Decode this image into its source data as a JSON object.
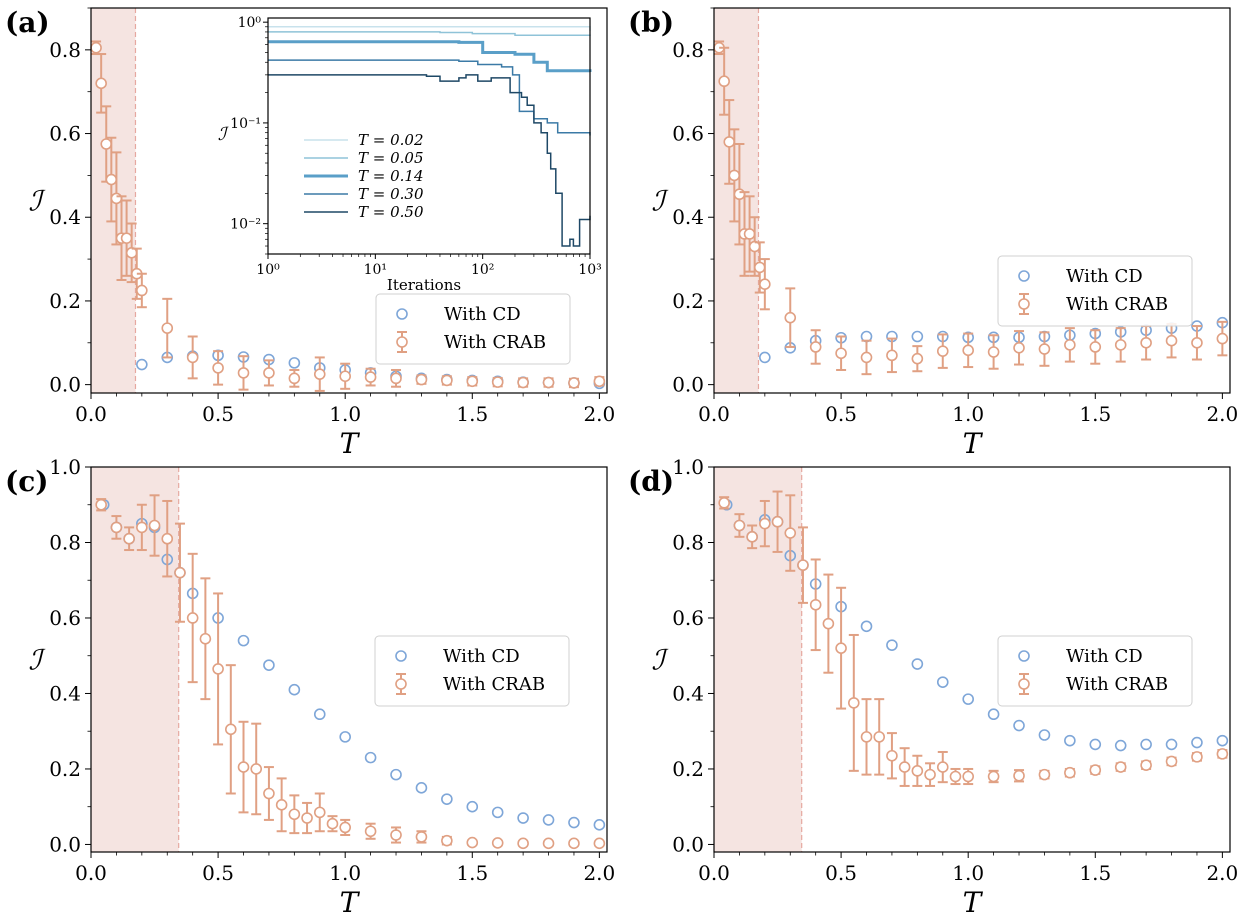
{
  "colors": {
    "cd": "#7ea6d8",
    "crab": "#e0a083",
    "shade": "#f5e4e1",
    "shade_line": "#e6a8a0"
  },
  "legend": {
    "cd": "With CD",
    "crab": "With CRAB"
  },
  "chart_data": [
    {
      "type": "scatter",
      "panel_label": "(a)",
      "xlabel": "T",
      "ylabel": "ℐ",
      "xlim": [
        0,
        2.03
      ],
      "ylim": [
        -0.02,
        0.9
      ],
      "xticks": [
        "0.0",
        "0.5",
        "1.0",
        "1.5",
        "2.0"
      ],
      "yticks": [
        "0.0",
        "0.2",
        "0.4",
        "0.6",
        "0.8"
      ],
      "shade_x": 0.175,
      "legend_position": "lower-right",
      "series": [
        {
          "name": "With CD",
          "x": [
            0.2,
            0.3,
            0.4,
            0.5,
            0.6,
            0.7,
            0.8,
            0.9,
            1.0,
            1.1,
            1.2,
            1.3,
            1.4,
            1.5,
            1.6,
            1.7,
            1.8,
            1.9,
            2.0
          ],
          "y": [
            0.048,
            0.065,
            0.068,
            0.07,
            0.066,
            0.06,
            0.052,
            0.04,
            0.035,
            0.028,
            0.02,
            0.015,
            0.012,
            0.01,
            0.008,
            0.006,
            0.005,
            0.004,
            0.003
          ]
        },
        {
          "name": "With CRAB",
          "x": [
            0.02,
            0.04,
            0.06,
            0.08,
            0.1,
            0.12,
            0.14,
            0.16,
            0.18,
            0.2,
            0.3,
            0.4,
            0.5,
            0.6,
            0.7,
            0.8,
            0.9,
            1.0,
            1.1,
            1.2,
            1.3,
            1.4,
            1.5,
            1.6,
            1.7,
            1.8,
            1.9,
            2.0
          ],
          "y": [
            0.805,
            0.72,
            0.575,
            0.49,
            0.445,
            0.35,
            0.35,
            0.315,
            0.265,
            0.225,
            0.135,
            0.065,
            0.04,
            0.028,
            0.028,
            0.015,
            0.025,
            0.02,
            0.018,
            0.015,
            0.012,
            0.01,
            0.008,
            0.006,
            0.005,
            0.005,
            0.004,
            0.008
          ],
          "err": [
            0.015,
            0.07,
            0.09,
            0.1,
            0.11,
            0.1,
            0.09,
            0.07,
            0.06,
            0.04,
            0.07,
            0.05,
            0.04,
            0.04,
            0.03,
            0.02,
            0.04,
            0.03,
            0.02,
            0.02,
            0.01,
            0.01,
            0.01,
            0.01,
            0.01,
            0.01,
            0.01,
            0.01
          ]
        }
      ],
      "inset": {
        "xlabel": "Iterations",
        "ylabel": "ℐ",
        "xticks": [
          "10⁰",
          "10¹",
          "10²",
          "10³"
        ],
        "yticks": [
          "10⁰",
          "10⁻¹",
          "10⁻²"
        ],
        "xlim": [
          1,
          1000
        ],
        "ylim": [
          0.005,
          1.1
        ],
        "scale": "log-log",
        "lines": [
          {
            "name": "T = 0.02",
            "color": "#c8e2ec",
            "width": 1.5,
            "points": [
              [
                1,
                0.9
              ],
              [
                1000,
                0.82
              ]
            ]
          },
          {
            "name": "T = 0.05",
            "color": "#8fc3d8",
            "width": 1.5,
            "points": [
              [
                1,
                0.8
              ],
              [
                40,
                0.79
              ],
              [
                80,
                0.77
              ],
              [
                200,
                0.74
              ],
              [
                1000,
                0.73
              ]
            ]
          },
          {
            "name": "T = 0.14",
            "color": "#5a9fc8",
            "width": 3,
            "points": [
              [
                1,
                0.64
              ],
              [
                60,
                0.63
              ],
              [
                100,
                0.5
              ],
              [
                200,
                0.48
              ],
              [
                300,
                0.4
              ],
              [
                400,
                0.33
              ],
              [
                1000,
                0.32
              ]
            ]
          },
          {
            "name": "T = 0.30",
            "color": "#3b7aa6",
            "width": 1.5,
            "points": [
              [
                1,
                0.42
              ],
              [
                60,
                0.41
              ],
              [
                90,
                0.38
              ],
              [
                150,
                0.36
              ],
              [
                190,
                0.3
              ],
              [
                220,
                0.13
              ],
              [
                300,
                0.11
              ],
              [
                400,
                0.1
              ],
              [
                500,
                0.08
              ],
              [
                1000,
                0.075
              ]
            ]
          },
          {
            "name": "T = 0.50",
            "color": "#1e4866",
            "width": 1.5,
            "points": [
              [
                1,
                0.3
              ],
              [
                30,
                0.29
              ],
              [
                40,
                0.26
              ],
              [
                60,
                0.28
              ],
              [
                70,
                0.3
              ],
              [
                90,
                0.26
              ],
              [
                120,
                0.28
              ],
              [
                180,
                0.2
              ],
              [
                230,
                0.18
              ],
              [
                260,
                0.15
              ],
              [
                300,
                0.1
              ],
              [
                350,
                0.08
              ],
              [
                400,
                0.05
              ],
              [
                430,
                0.035
              ],
              [
                480,
                0.02
              ],
              [
                550,
                0.006
              ],
              [
                650,
                0.007
              ],
              [
                700,
                0.006
              ],
              [
                800,
                0.011
              ],
              [
                1000,
                0.012
              ]
            ]
          }
        ]
      }
    },
    {
      "type": "scatter",
      "panel_label": "(b)",
      "xlabel": "T",
      "ylabel": "ℐ",
      "xlim": [
        0,
        2.03
      ],
      "ylim": [
        -0.02,
        0.9
      ],
      "xticks": [
        "0.0",
        "0.5",
        "1.0",
        "1.5",
        "2.0"
      ],
      "yticks": [
        "0.0",
        "0.2",
        "0.4",
        "0.6",
        "0.8"
      ],
      "shade_x": 0.175,
      "legend_position": "center-right",
      "series": [
        {
          "name": "With CD",
          "x": [
            0.2,
            0.3,
            0.4,
            0.5,
            0.6,
            0.7,
            0.8,
            0.9,
            1.0,
            1.1,
            1.2,
            1.3,
            1.4,
            1.5,
            1.6,
            1.7,
            1.8,
            1.9,
            2.0
          ],
          "y": [
            0.065,
            0.088,
            0.105,
            0.112,
            0.115,
            0.115,
            0.115,
            0.115,
            0.113,
            0.113,
            0.113,
            0.115,
            0.118,
            0.122,
            0.126,
            0.13,
            0.135,
            0.14,
            0.148
          ]
        },
        {
          "name": "With CRAB",
          "x": [
            0.02,
            0.04,
            0.06,
            0.08,
            0.1,
            0.12,
            0.14,
            0.16,
            0.18,
            0.2,
            0.3,
            0.4,
            0.5,
            0.6,
            0.7,
            0.8,
            0.9,
            1.0,
            1.1,
            1.2,
            1.3,
            1.4,
            1.5,
            1.6,
            1.7,
            1.8,
            1.9,
            2.0
          ],
          "y": [
            0.805,
            0.725,
            0.58,
            0.5,
            0.455,
            0.36,
            0.36,
            0.33,
            0.28,
            0.24,
            0.16,
            0.09,
            0.075,
            0.065,
            0.07,
            0.062,
            0.08,
            0.082,
            0.078,
            0.088,
            0.085,
            0.095,
            0.09,
            0.095,
            0.1,
            0.105,
            0.1,
            0.11
          ],
          "err": [
            0.015,
            0.08,
            0.1,
            0.11,
            0.12,
            0.1,
            0.09,
            0.07,
            0.06,
            0.06,
            0.07,
            0.04,
            0.04,
            0.04,
            0.04,
            0.03,
            0.04,
            0.04,
            0.04,
            0.04,
            0.04,
            0.04,
            0.04,
            0.04,
            0.04,
            0.04,
            0.04,
            0.04
          ]
        }
      ]
    },
    {
      "type": "scatter",
      "panel_label": "(c)",
      "xlabel": "T",
      "ylabel": "ℐ",
      "xlim": [
        0,
        2.03
      ],
      "ylim": [
        -0.02,
        1.0
      ],
      "xticks": [
        "0.0",
        "0.5",
        "1.0",
        "1.5",
        "2.0"
      ],
      "yticks": [
        "0.0",
        "0.2",
        "0.4",
        "0.6",
        "0.8",
        "1.0"
      ],
      "shade_x": 0.345,
      "legend_position": "center-right",
      "series": [
        {
          "name": "With CD",
          "x": [
            0.05,
            0.1,
            0.15,
            0.2,
            0.25,
            0.3,
            0.35,
            0.4,
            0.5,
            0.6,
            0.7,
            0.8,
            0.9,
            1.0,
            1.1,
            1.2,
            1.3,
            1.4,
            1.5,
            1.6,
            1.7,
            1.8,
            1.9,
            2.0
          ],
          "y": [
            0.9,
            0.84,
            0.81,
            0.85,
            0.84,
            0.755,
            0.72,
            0.665,
            0.6,
            0.54,
            0.475,
            0.41,
            0.345,
            0.285,
            0.23,
            0.185,
            0.15,
            0.12,
            0.1,
            0.085,
            0.07,
            0.065,
            0.058,
            0.052
          ]
        },
        {
          "name": "With CRAB",
          "x": [
            0.04,
            0.1,
            0.15,
            0.2,
            0.25,
            0.3,
            0.35,
            0.4,
            0.45,
            0.5,
            0.55,
            0.6,
            0.65,
            0.7,
            0.75,
            0.8,
            0.85,
            0.9,
            0.95,
            1.0,
            1.1,
            1.2,
            1.3,
            1.4,
            1.5,
            1.6,
            1.7,
            1.8,
            1.9,
            2.0
          ],
          "y": [
            0.9,
            0.84,
            0.81,
            0.84,
            0.845,
            0.81,
            0.72,
            0.6,
            0.545,
            0.465,
            0.305,
            0.205,
            0.2,
            0.135,
            0.105,
            0.08,
            0.07,
            0.085,
            0.055,
            0.045,
            0.035,
            0.025,
            0.02,
            0.01,
            0.005,
            0.004,
            0.003,
            0.003,
            0.003,
            0.003
          ],
          "err": [
            0.015,
            0.03,
            0.03,
            0.06,
            0.08,
            0.1,
            0.13,
            0.17,
            0.16,
            0.2,
            0.17,
            0.12,
            0.12,
            0.07,
            0.07,
            0.05,
            0.04,
            0.05,
            0.02,
            0.02,
            0.02,
            0.02,
            0.015,
            0.01,
            0.005,
            0.004,
            0.003,
            0.003,
            0.003,
            0.003
          ]
        }
      ]
    },
    {
      "type": "scatter",
      "panel_label": "(d)",
      "xlabel": "T",
      "ylabel": "ℐ",
      "xlim": [
        0,
        2.03
      ],
      "ylim": [
        -0.02,
        1.0
      ],
      "xticks": [
        "0.0",
        "0.5",
        "1.0",
        "1.5",
        "2.0"
      ],
      "yticks": [
        "0.0",
        "0.2",
        "0.4",
        "0.6",
        "0.8",
        "1.0"
      ],
      "shade_x": 0.345,
      "legend_position": "center-right",
      "series": [
        {
          "name": "With CD",
          "x": [
            0.05,
            0.1,
            0.15,
            0.2,
            0.25,
            0.3,
            0.35,
            0.4,
            0.5,
            0.6,
            0.7,
            0.8,
            0.9,
            1.0,
            1.1,
            1.2,
            1.3,
            1.4,
            1.5,
            1.6,
            1.7,
            1.8,
            1.9,
            2.0
          ],
          "y": [
            0.9,
            0.845,
            0.815,
            0.86,
            0.855,
            0.765,
            0.74,
            0.69,
            0.63,
            0.578,
            0.528,
            0.478,
            0.43,
            0.385,
            0.345,
            0.315,
            0.29,
            0.275,
            0.265,
            0.262,
            0.265,
            0.265,
            0.27,
            0.275
          ]
        },
        {
          "name": "With CRAB",
          "x": [
            0.04,
            0.1,
            0.15,
            0.2,
            0.25,
            0.3,
            0.35,
            0.4,
            0.45,
            0.5,
            0.55,
            0.6,
            0.65,
            0.7,
            0.75,
            0.8,
            0.85,
            0.9,
            0.95,
            1.0,
            1.1,
            1.2,
            1.3,
            1.4,
            1.5,
            1.6,
            1.7,
            1.8,
            1.9,
            2.0
          ],
          "y": [
            0.905,
            0.845,
            0.815,
            0.85,
            0.855,
            0.825,
            0.74,
            0.635,
            0.585,
            0.52,
            0.375,
            0.285,
            0.285,
            0.235,
            0.205,
            0.195,
            0.185,
            0.205,
            0.18,
            0.18,
            0.18,
            0.182,
            0.185,
            0.19,
            0.197,
            0.205,
            0.21,
            0.22,
            0.232,
            0.24
          ],
          "err": [
            0.015,
            0.03,
            0.03,
            0.06,
            0.08,
            0.1,
            0.1,
            0.12,
            0.13,
            0.16,
            0.18,
            0.1,
            0.1,
            0.06,
            0.05,
            0.04,
            0.03,
            0.04,
            0.02,
            0.02,
            0.015,
            0.015,
            0.01,
            0.01,
            0.01,
            0.01,
            0.01,
            0.01,
            0.01,
            0.01
          ]
        }
      ]
    }
  ]
}
